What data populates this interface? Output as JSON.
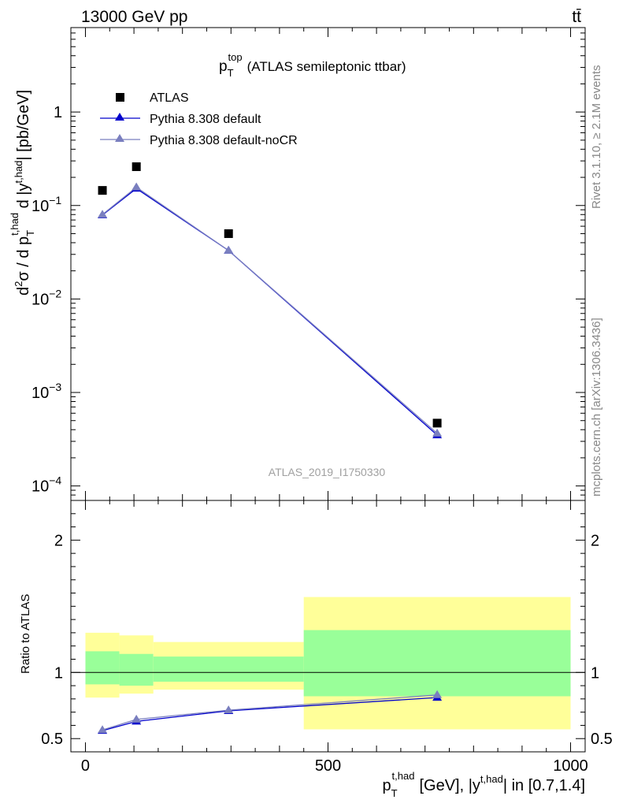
{
  "header": {
    "energy": "13000 GeV pp",
    "process": "tt̄",
    "analysis_id": "ATLAS_2019_I1750330",
    "rivet": "Rivet 3.1.10, ≥ 2.1M events",
    "mcplots": "mcplots.cern.ch [arXiv:1306.3436]"
  },
  "chart_data": [
    {
      "type": "line",
      "title": "(ATLAS semileptonic ttbar)",
      "title_var": "p",
      "title_sup": "top",
      "title_sub": "T",
      "ylabel": "d²σ / d pT^{t,had} d |y^{t,had}| [pb/GeV]",
      "y_scale": "log",
      "ylim": [
        7e-05,
        8
      ],
      "xlim": [
        -30,
        1030
      ],
      "y_ticks": [
        {
          "v": 1,
          "label": "1"
        },
        {
          "v": 0.1,
          "label": "10",
          "exp": "−1"
        },
        {
          "v": 0.01,
          "label": "10",
          "exp": "−2"
        },
        {
          "v": 0.001,
          "label": "10",
          "exp": "−3"
        },
        {
          "v": 0.0001,
          "label": "10",
          "exp": "−4"
        }
      ],
      "legend_position": "top-left",
      "series": [
        {
          "name": "ATLAS",
          "marker": "square",
          "color": "#000000",
          "x": [
            35,
            105,
            295,
            725
          ],
          "y": [
            0.145,
            0.26,
            0.05,
            0.00047
          ]
        },
        {
          "name": "Pythia 8.308 default",
          "marker": "triangle",
          "color": "#0000cc",
          "x": [
            35,
            105,
            295,
            725
          ],
          "y": [
            0.079,
            0.152,
            0.033,
            0.00035
          ]
        },
        {
          "name": "Pythia 8.308 default-noCR",
          "marker": "triangle",
          "color": "#7a7fbf",
          "x": [
            35,
            105,
            295,
            725
          ],
          "y": [
            0.08,
            0.157,
            0.033,
            0.000365
          ]
        }
      ]
    },
    {
      "type": "line",
      "ylabel": "Ratio to ATLAS",
      "xlabel": "pT^{t,had} [GeV], |y^{t,had}| in [0.7,1.4]",
      "xlabel_var": "p",
      "xlabel_sup": "t,had",
      "xlabel_sub": "T",
      "xlabel_mid": "[GeV], |y",
      "xlabel_sup2": "t,had",
      "xlabel_tail": "| in [0.7,1.4]",
      "ylim": [
        0.4,
        2.3
      ],
      "xlim": [
        -30,
        1030
      ],
      "y_ticks": [
        0.5,
        1,
        2
      ],
      "x_ticks": [
        0,
        500,
        1000
      ],
      "bands": [
        {
          "x0": 0,
          "x1": 70,
          "yellow": [
            0.81,
            1.3
          ],
          "green": [
            0.91,
            1.16
          ]
        },
        {
          "x0": 70,
          "x1": 140,
          "yellow": [
            0.84,
            1.28
          ],
          "green": [
            0.9,
            1.14
          ]
        },
        {
          "x0": 140,
          "x1": 450,
          "yellow": [
            0.87,
            1.23
          ],
          "green": [
            0.93,
            1.12
          ]
        },
        {
          "x0": 450,
          "x1": 1000,
          "yellow": [
            0.57,
            1.57
          ],
          "green": [
            0.82,
            1.32
          ]
        }
      ],
      "series": [
        {
          "name": "Pythia 8.308 default",
          "color": "#0000cc",
          "x": [
            35,
            105,
            295,
            725
          ],
          "y": [
            0.56,
            0.63,
            0.71,
            0.81
          ]
        },
        {
          "name": "Pythia 8.308 default-noCR",
          "color": "#7a7fbf",
          "x": [
            35,
            105,
            295,
            725
          ],
          "y": [
            0.565,
            0.645,
            0.715,
            0.83
          ]
        }
      ]
    }
  ]
}
